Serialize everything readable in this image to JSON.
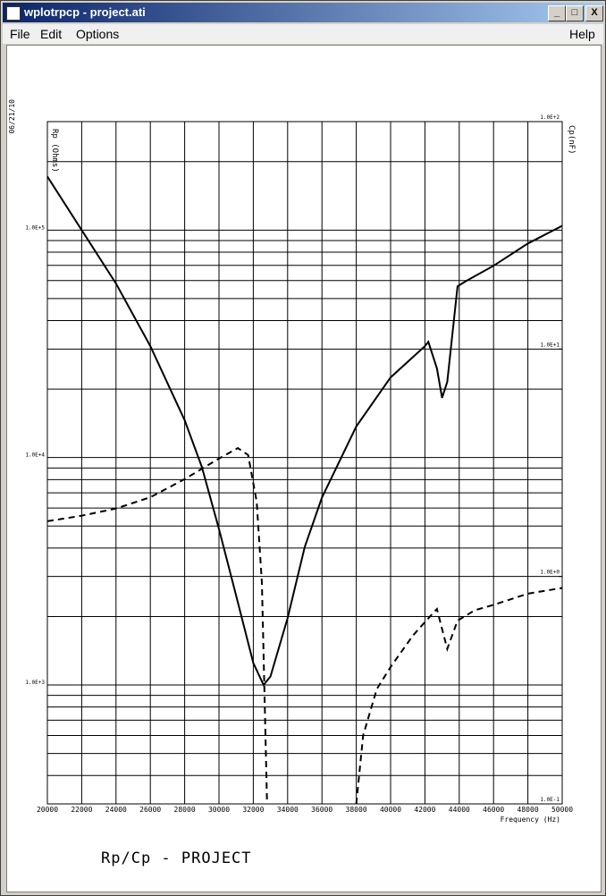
{
  "window": {
    "title": "wplotrpcp - project.ati",
    "menu": [
      "File",
      "Edit",
      "Options"
    ],
    "help_menu": "Help"
  },
  "chart_data": {
    "type": "line",
    "title": "Rp/Cp - PROJECT",
    "date": "06/21/10",
    "xlabel": "Frequency (Hz)",
    "ylabel": "Rp (Ohms)",
    "y2label": "Cp(nF)",
    "log_scale": true,
    "grid": true,
    "xlim": [
      20000,
      50000
    ],
    "xticks": [
      20000,
      22000,
      24000,
      26000,
      28000,
      30000,
      32000,
      34000,
      36000,
      38000,
      40000,
      42000,
      44000,
      46000,
      48000,
      50000
    ],
    "ylim": [
      300,
      300000
    ],
    "yticks": [
      {
        "value": 1000,
        "label": "1.0E+3"
      },
      {
        "value": 10000,
        "label": "1.0E+4"
      },
      {
        "value": 100000,
        "label": "1.0E+5"
      }
    ],
    "yminorticks": [
      300,
      400,
      500,
      600,
      700,
      800,
      900,
      2000,
      3000,
      4000,
      5000,
      6000,
      7000,
      8000,
      9000,
      20000,
      30000,
      40000,
      50000,
      60000,
      70000,
      80000,
      90000,
      200000
    ],
    "y2lim": [
      0.1,
      100
    ],
    "y2ticks": [
      {
        "value": 0.1,
        "label": "1.0E-1"
      },
      {
        "value": 1,
        "label": "1.0E+0"
      },
      {
        "value": 10,
        "label": "1.0E+1"
      },
      {
        "value": 100,
        "label": "1.0E+2"
      }
    ],
    "series": [
      {
        "name": "Rp",
        "color": "#000000",
        "style": "solid",
        "x": [
          20000,
          22000,
          24000,
          26000,
          28000,
          29000,
          30000,
          31000,
          32000,
          32600,
          33000,
          34000,
          35000,
          36000,
          38000,
          40000,
          42000,
          42200,
          42700,
          43000,
          43300,
          43900,
          44400,
          46000,
          48000,
          50000
        ],
        "values": [
          172000,
          100000,
          58200,
          30900,
          14600,
          9100,
          4850,
          2470,
          1250,
          1000,
          1090,
          1970,
          4050,
          6670,
          13700,
          22500,
          30900,
          32300,
          24700,
          18300,
          21500,
          56600,
          59700,
          69700,
          87300,
          104500
        ]
      },
      {
        "name": "Cp",
        "color": "#000000",
        "style": "dashed",
        "axis": "y2",
        "x": [
          20000,
          22000,
          24000,
          26000,
          28000,
          30000,
          31100,
          31700,
          32200,
          32500,
          32800,
          35000,
          38000,
          38400,
          39200,
          40000,
          41300,
          42000,
          42700,
          43300,
          43900,
          44900,
          46000,
          48000,
          50000
        ],
        "values": [
          1.75,
          1.85,
          1.99,
          2.23,
          2.68,
          3.3,
          3.67,
          3.42,
          2.13,
          0.94,
          0.1,
          null,
          0.1,
          0.2,
          0.32,
          0.4,
          0.55,
          0.63,
          0.72,
          0.48,
          0.64,
          0.71,
          0.75,
          0.84,
          0.89
        ]
      }
    ]
  }
}
